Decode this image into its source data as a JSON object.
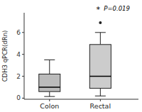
{
  "chart_data": {
    "type": "box",
    "title": "",
    "ylabel": "CDH3 qPCR(dRn)",
    "categories": [
      "Colon",
      "Rectal"
    ],
    "boxes": [
      {
        "median": 1.0,
        "q1": 0.6,
        "q3": 2.2,
        "whislo": 0.15,
        "whishi": 3.5,
        "fliers": []
      },
      {
        "median": 2.0,
        "q1": 0.9,
        "q3": 4.9,
        "whislo": 0.2,
        "whishi": 6.0,
        "fliers": [
          6.9
        ]
      }
    ],
    "colors": [
      "#bbbbbb",
      "#cccccc"
    ],
    "ylim": [
      -0.1,
      7.8
    ],
    "yticks": [
      0,
      2,
      4,
      6
    ],
    "annotations": [
      {
        "text": "*"
      },
      {
        "text": "P=0.019"
      }
    ]
  }
}
